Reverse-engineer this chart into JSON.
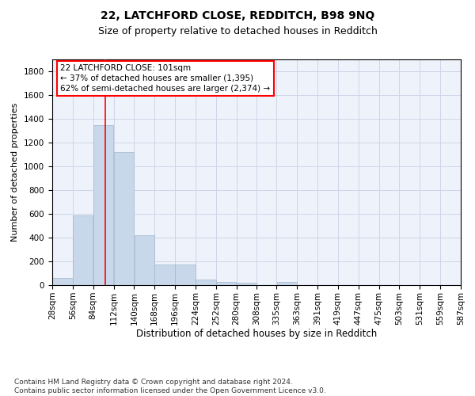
{
  "title1": "22, LATCHFORD CLOSE, REDDITCH, B98 9NQ",
  "title2": "Size of property relative to detached houses in Redditch",
  "xlabel": "Distribution of detached houses by size in Redditch",
  "ylabel": "Number of detached properties",
  "bar_color": "#c8d8ea",
  "bar_edgecolor": "#a0b8cc",
  "vline_x": 101,
  "vline_color": "red",
  "bin_edges": [
    28,
    56,
    84,
    112,
    140,
    168,
    196,
    224,
    252,
    280,
    308,
    335,
    363,
    391,
    419,
    447,
    475,
    503,
    531,
    559,
    587
  ],
  "bar_heights": [
    60,
    590,
    1350,
    1120,
    420,
    175,
    175,
    50,
    30,
    20,
    0,
    30,
    0,
    0,
    0,
    0,
    0,
    0,
    0,
    0
  ],
  "ylim": [
    0,
    1900
  ],
  "yticks": [
    0,
    200,
    400,
    600,
    800,
    1000,
    1200,
    1400,
    1600,
    1800
  ],
  "annotation_text": "22 LATCHFORD CLOSE: 101sqm\n← 37% of detached houses are smaller (1,395)\n62% of semi-detached houses are larger (2,374) →",
  "annotation_box_color": "white",
  "annotation_box_edgecolor": "red",
  "grid_color": "#ccd6e8",
  "background_color": "#eef2fa",
  "footer_text": "Contains HM Land Registry data © Crown copyright and database right 2024.\nContains public sector information licensed under the Open Government Licence v3.0.",
  "title1_fontsize": 10,
  "title2_fontsize": 9,
  "xlabel_fontsize": 8.5,
  "ylabel_fontsize": 8,
  "tick_fontsize": 7.5,
  "annotation_fontsize": 7.5,
  "footer_fontsize": 6.5
}
